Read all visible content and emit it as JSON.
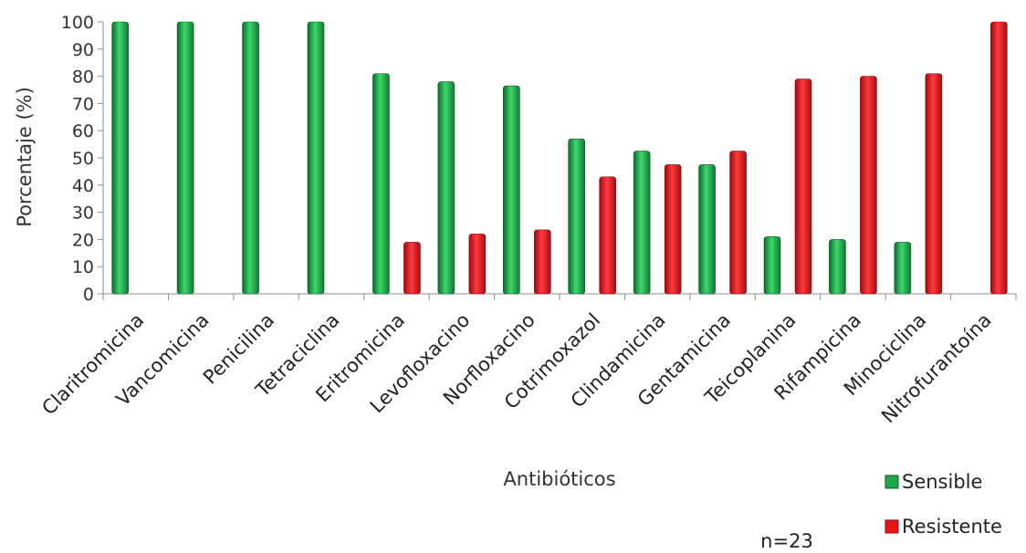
{
  "chart_data": {
    "type": "bar",
    "xlabel": "Antibióticos",
    "ylabel": "Porcentaje (%)",
    "ylim": [
      0,
      100
    ],
    "yticks": [
      0,
      10,
      20,
      30,
      40,
      50,
      60,
      70,
      80,
      90,
      100
    ],
    "grid": false,
    "legend_position": "bottom-right",
    "annotation": "n=23",
    "categories": [
      "Claritromicina",
      "Vancomicina",
      "Penicilina",
      "Tetraciclina",
      "Eritromicina",
      "Levofloxacino",
      "Norfloxacino",
      "Cotrimoxazol",
      "Clindamicina",
      "Gentamicina",
      "Teicoplanina",
      "Rifampicina",
      "Minociclina",
      "Nitrofurantoína"
    ],
    "series": [
      {
        "name": "Sensible",
        "color": "#1fa84a",
        "values": [
          100,
          100,
          100,
          100,
          81,
          78,
          76.5,
          57,
          52.5,
          47.5,
          21,
          20,
          19,
          0
        ]
      },
      {
        "name": "Resistente",
        "color": "#e8151b",
        "values": [
          0,
          0,
          0,
          0,
          19,
          22,
          23.5,
          43,
          47.5,
          52.5,
          79,
          80,
          81,
          100
        ]
      }
    ]
  }
}
